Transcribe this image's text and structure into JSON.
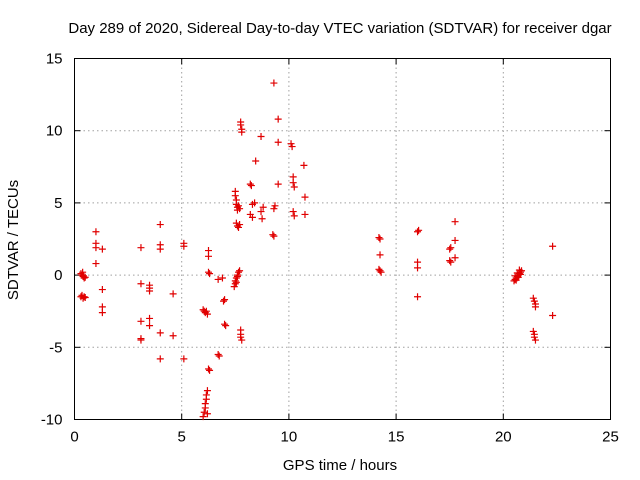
{
  "chart_data": {
    "type": "scatter",
    "title": "Day 289 of 2020, Sidereal Day-to-day VTEC variation (SDTVAR) for receiver dgar",
    "xlabel": "GPS time / hours",
    "ylabel": "SDTVAR / TECUs",
    "xlim": [
      0,
      25
    ],
    "ylim": [
      -10,
      15
    ],
    "xticks": [
      "0",
      "5",
      "10",
      "15",
      "20",
      "25"
    ],
    "yticks": [
      "-10",
      "-5",
      "0",
      "5",
      "10",
      "15"
    ],
    "grid": true,
    "marker": "+",
    "color": "#e00000",
    "series": [
      {
        "name": "SDTVAR",
        "points": [
          [
            0.3,
            0.1
          ],
          [
            0.35,
            0.0
          ],
          [
            0.4,
            -0.1
          ],
          [
            0.45,
            -0.2
          ],
          [
            0.38,
            0.2
          ],
          [
            0.42,
            -0.05
          ],
          [
            0.5,
            -0.15
          ],
          [
            0.3,
            -1.5
          ],
          [
            0.35,
            -1.4
          ],
          [
            0.4,
            -1.6
          ],
          [
            0.45,
            -1.5
          ],
          [
            0.5,
            -1.55
          ],
          [
            1.0,
            3.0
          ],
          [
            1.0,
            2.2
          ],
          [
            1.0,
            1.9
          ],
          [
            1.0,
            0.8
          ],
          [
            1.3,
            1.8
          ],
          [
            1.3,
            -1.0
          ],
          [
            1.3,
            -2.2
          ],
          [
            1.3,
            -2.6
          ],
          [
            3.1,
            1.9
          ],
          [
            3.1,
            -0.6
          ],
          [
            3.1,
            -3.2
          ],
          [
            3.1,
            -4.4
          ],
          [
            3.1,
            -4.5
          ],
          [
            3.5,
            -0.7
          ],
          [
            3.5,
            -0.9
          ],
          [
            3.5,
            -1.1
          ],
          [
            3.5,
            -3.0
          ],
          [
            3.5,
            -3.5
          ],
          [
            4.0,
            3.5
          ],
          [
            4.0,
            2.1
          ],
          [
            4.0,
            1.8
          ],
          [
            4.0,
            -4.0
          ],
          [
            4.0,
            -5.8
          ],
          [
            4.6,
            -1.3
          ],
          [
            4.6,
            -4.2
          ],
          [
            5.1,
            2.2
          ],
          [
            5.1,
            2.0
          ],
          [
            5.1,
            -5.8
          ],
          [
            6.0,
            -2.4
          ],
          [
            6.05,
            -2.5
          ],
          [
            6.1,
            -2.6
          ],
          [
            6.15,
            -2.5
          ],
          [
            6.2,
            -2.7
          ],
          [
            6.0,
            -9.8
          ],
          [
            6.05,
            -9.5
          ],
          [
            6.1,
            -9.2
          ],
          [
            6.1,
            -8.9
          ],
          [
            6.15,
            -8.6
          ],
          [
            6.15,
            -8.3
          ],
          [
            6.2,
            -8.0
          ],
          [
            6.2,
            -9.6
          ],
          [
            6.25,
            1.7
          ],
          [
            6.25,
            1.3
          ],
          [
            6.25,
            0.2
          ],
          [
            6.3,
            0.1
          ],
          [
            6.25,
            -6.5
          ],
          [
            6.3,
            -6.6
          ],
          [
            6.7,
            -0.3
          ],
          [
            6.7,
            -5.5
          ],
          [
            6.75,
            -5.6
          ],
          [
            6.9,
            -0.2
          ],
          [
            6.95,
            -1.8
          ],
          [
            7.0,
            -1.7
          ],
          [
            7.0,
            -3.4
          ],
          [
            7.05,
            -3.5
          ],
          [
            7.45,
            -0.8
          ],
          [
            7.5,
            -0.6
          ],
          [
            7.5,
            -0.4
          ],
          [
            7.55,
            -0.2
          ],
          [
            7.6,
            0.0
          ],
          [
            7.65,
            0.2
          ],
          [
            7.7,
            0.3
          ],
          [
            7.55,
            -0.5
          ],
          [
            7.6,
            -0.1
          ],
          [
            7.5,
            5.8
          ],
          [
            7.5,
            5.5
          ],
          [
            7.55,
            5.2
          ],
          [
            7.55,
            4.9
          ],
          [
            7.6,
            4.7
          ],
          [
            7.6,
            4.5
          ],
          [
            7.65,
            4.8
          ],
          [
            7.7,
            4.6
          ],
          [
            7.55,
            3.6
          ],
          [
            7.6,
            3.4
          ],
          [
            7.65,
            3.3
          ],
          [
            7.7,
            3.5
          ],
          [
            7.75,
            10.6
          ],
          [
            7.75,
            10.4
          ],
          [
            7.8,
            10.1
          ],
          [
            7.8,
            9.9
          ],
          [
            7.75,
            -3.8
          ],
          [
            7.75,
            -4.1
          ],
          [
            7.75,
            -4.3
          ],
          [
            7.8,
            -4.5
          ],
          [
            8.2,
            6.3
          ],
          [
            8.25,
            6.2
          ],
          [
            8.2,
            4.2
          ],
          [
            8.3,
            4.0
          ],
          [
            8.3,
            4.9
          ],
          [
            8.4,
            5.0
          ],
          [
            8.45,
            7.9
          ],
          [
            8.7,
            9.6
          ],
          [
            8.8,
            4.7
          ],
          [
            8.75,
            3.9
          ],
          [
            8.7,
            4.4
          ],
          [
            9.3,
            13.3
          ],
          [
            9.25,
            2.8
          ],
          [
            9.3,
            2.7
          ],
          [
            9.35,
            4.8
          ],
          [
            9.3,
            4.6
          ],
          [
            9.5,
            10.8
          ],
          [
            9.5,
            9.2
          ],
          [
            9.5,
            6.3
          ],
          [
            10.1,
            9.1
          ],
          [
            10.15,
            8.9
          ],
          [
            10.2,
            6.8
          ],
          [
            10.2,
            6.4
          ],
          [
            10.25,
            6.1
          ],
          [
            10.2,
            4.4
          ],
          [
            10.25,
            4.1
          ],
          [
            10.7,
            7.6
          ],
          [
            10.75,
            5.4
          ],
          [
            10.75,
            4.2
          ],
          [
            14.2,
            2.6
          ],
          [
            14.25,
            2.5
          ],
          [
            14.25,
            1.4
          ],
          [
            14.2,
            0.4
          ],
          [
            14.25,
            0.3
          ],
          [
            14.3,
            0.2
          ],
          [
            16.0,
            3.0
          ],
          [
            16.05,
            3.1
          ],
          [
            16.0,
            0.9
          ],
          [
            16.0,
            0.5
          ],
          [
            16.0,
            -1.5
          ],
          [
            17.5,
            1.8
          ],
          [
            17.55,
            1.9
          ],
          [
            17.5,
            1.0
          ],
          [
            17.55,
            0.9
          ],
          [
            17.75,
            3.7
          ],
          [
            17.75,
            2.4
          ],
          [
            17.75,
            1.2
          ],
          [
            20.5,
            -0.4
          ],
          [
            20.55,
            -0.3
          ],
          [
            20.6,
            -0.2
          ],
          [
            20.65,
            -0.1
          ],
          [
            20.7,
            0.0
          ],
          [
            20.75,
            0.1
          ],
          [
            20.8,
            0.2
          ],
          [
            20.85,
            0.3
          ],
          [
            20.6,
            -0.35
          ],
          [
            20.7,
            -0.15
          ],
          [
            20.8,
            0.05
          ],
          [
            20.65,
            0.15
          ],
          [
            20.75,
            0.35
          ],
          [
            20.55,
            -0.05
          ],
          [
            21.4,
            -1.6
          ],
          [
            21.45,
            -1.8
          ],
          [
            21.5,
            -2.0
          ],
          [
            21.5,
            -2.2
          ],
          [
            21.4,
            -3.9
          ],
          [
            21.45,
            -4.1
          ],
          [
            21.45,
            -4.3
          ],
          [
            21.5,
            -4.5
          ],
          [
            22.3,
            2.0
          ],
          [
            22.3,
            -2.8
          ]
        ]
      }
    ]
  }
}
